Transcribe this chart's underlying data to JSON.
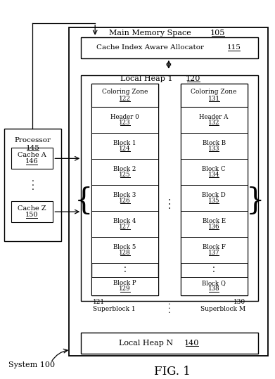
{
  "title": "FIG. 1",
  "system_label": "System 100",
  "main_memory_label": "Main Memory Space",
  "main_memory_num": "105",
  "allocator_label": "Cache Index Aware Allocator",
  "allocator_num": "115",
  "local_heap1_label": "Local Heap 1",
  "local_heap1_num": "120",
  "local_heapN_label": "Local Heap N",
  "local_heapN_num": "140",
  "processor_label": "Processor",
  "processor_num": "145",
  "cache_a_label": "Cache A",
  "cache_a_num": "146",
  "cache_z_label": "Cache Z",
  "cache_z_num": "150",
  "superblock1_label": "Superblock 1",
  "superblock1_num": "121",
  "superblocM_label": "Superblock M",
  "superblocM_num": "130",
  "coloring_zone1_label": "Coloring Zone",
  "coloring_zone1_num": "122",
  "coloring_zone2_label": "Coloring Zone",
  "coloring_zone2_num": "131",
  "left_blocks": [
    {
      "label": "Header 0",
      "num": "123"
    },
    {
      "label": "Block 1",
      "num": "124"
    },
    {
      "label": "Block 2",
      "num": "125"
    },
    {
      "label": "Block 3",
      "num": "126"
    },
    {
      "label": "Block 4",
      "num": "127"
    },
    {
      "label": "Block 5",
      "num": "128"
    },
    {
      "label": "Block P",
      "num": "129"
    }
  ],
  "right_blocks": [
    {
      "label": "Header A",
      "num": "132"
    },
    {
      "label": "Block B",
      "num": "133"
    },
    {
      "label": "Block C",
      "num": "134"
    },
    {
      "label": "Block D",
      "num": "135"
    },
    {
      "label": "Block E",
      "num": "136"
    },
    {
      "label": "Block F",
      "num": "137"
    },
    {
      "label": "Block Q",
      "num": "138"
    }
  ],
  "bg_color": "#ffffff",
  "border_color": "#000000",
  "text_color": "#000000"
}
